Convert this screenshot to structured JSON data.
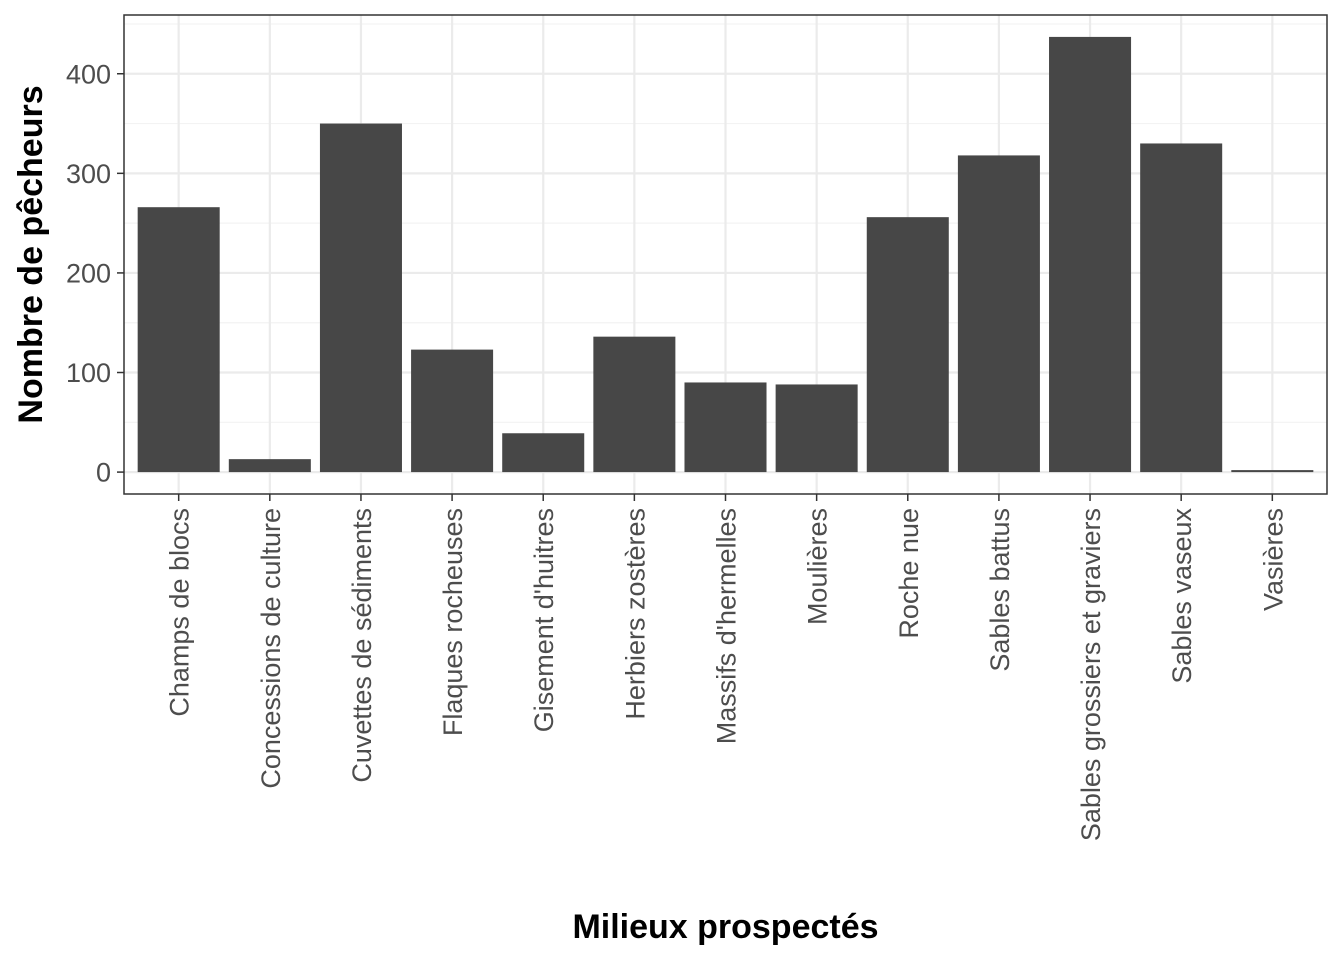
{
  "chart_data": {
    "type": "bar",
    "title": "",
    "xlabel": "Milieux prospectés",
    "ylabel": "Nombre de pêcheurs",
    "categories": [
      "Champs de blocs",
      "Concessions de culture",
      "Cuvettes de sédiments",
      "Flaques rocheuses",
      "Gisement d'huitres",
      "Herbiers zostères",
      "Massifs d'hermelles",
      "Moulières",
      "Roche nue",
      "Sables battus",
      "Sables grossiers et graviers",
      "Sables vaseux",
      "Vasières"
    ],
    "values": [
      266,
      13,
      350,
      123,
      39,
      136,
      90,
      88,
      256,
      318,
      437,
      330,
      2
    ],
    "ylim": [
      -22,
      459
    ],
    "yticks": [
      0,
      100,
      200,
      300,
      400
    ],
    "ytick_labels": [
      "0",
      "100",
      "200",
      "300",
      "400"
    ],
    "grid": true,
    "legend": "none",
    "colors": {
      "bar": "#474747",
      "panel_border": "#333333",
      "grid_major": "#ebebeb",
      "grid_minor": "#f3f3f3",
      "tick_text": "#4d4d4d"
    }
  }
}
